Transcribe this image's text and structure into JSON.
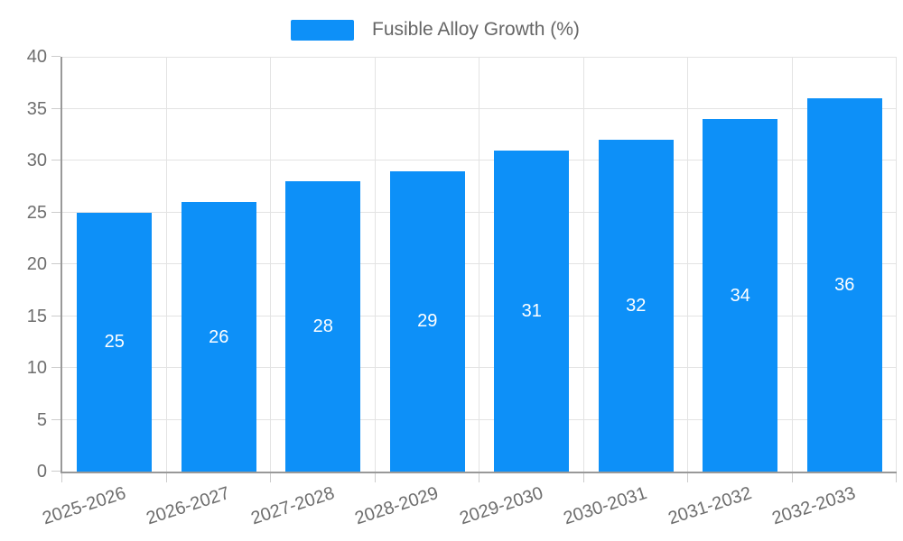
{
  "legend": {
    "label": "Fusible Alloy Growth (%)"
  },
  "colors": {
    "bar": "#0d90f8",
    "grid": "#e3e3e3",
    "axis": "#999999",
    "tick": "#cccccc",
    "axis_text": "#6e6e6e",
    "legend_text": "#666666",
    "value_label": "#ffffff",
    "background": "#ffffff"
  },
  "chart_data": {
    "type": "bar",
    "title": "Fusible Alloy Growth (%)",
    "categories": [
      "2025-2026",
      "2026-2027",
      "2027-2028",
      "2028-2029",
      "2029-2030",
      "2030-2031",
      "2031-2032",
      "2032-2033"
    ],
    "values": [
      25,
      26,
      28,
      29,
      31,
      32,
      34,
      36
    ],
    "xlabel": "",
    "ylabel": "",
    "ylim": [
      0,
      40
    ],
    "yticks": [
      0,
      5,
      10,
      15,
      20,
      25,
      30,
      35,
      40
    ],
    "grid": true,
    "legend_position": "top-center",
    "value_label_position": "inside-center",
    "xlabel_rotation_deg": -18
  }
}
